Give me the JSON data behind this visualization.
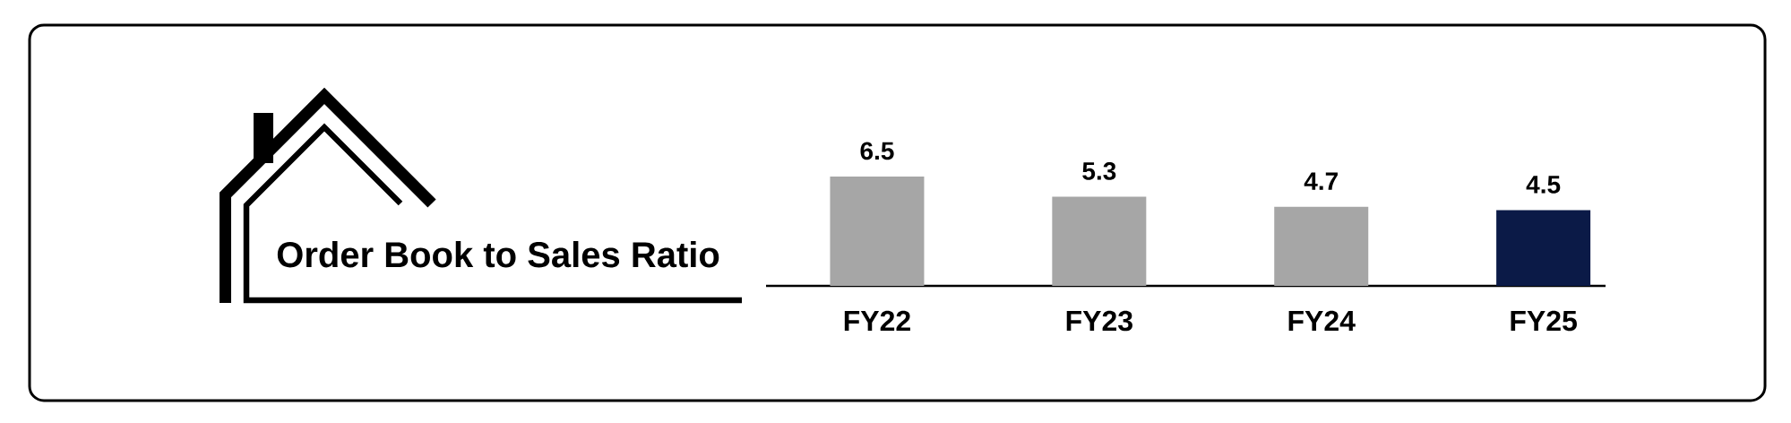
{
  "chart_data": {
    "type": "bar",
    "title": "Order Book to Sales Ratio",
    "categories": [
      "FY22",
      "FY23",
      "FY24",
      "FY25"
    ],
    "values": [
      6.5,
      5.3,
      4.7,
      4.5
    ],
    "colors": [
      "#a6a6a6",
      "#a6a6a6",
      "#a6a6a6",
      "#0b1a47"
    ],
    "data_labels": true
  }
}
